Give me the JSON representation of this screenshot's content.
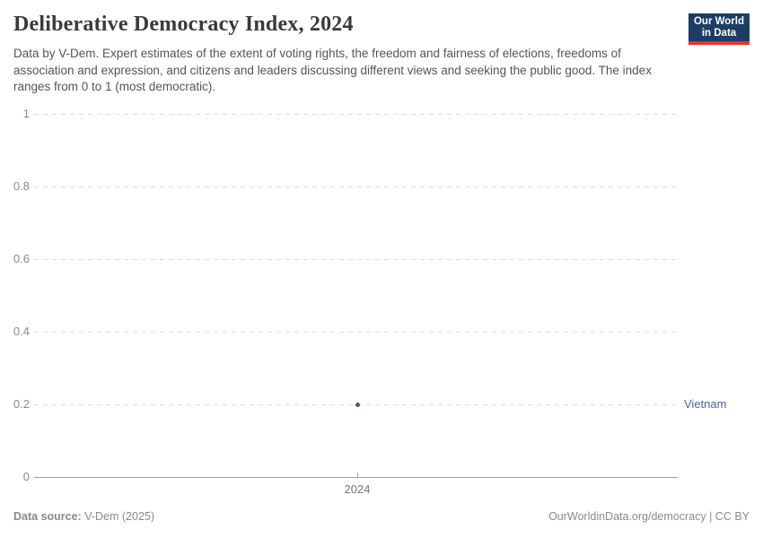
{
  "header": {
    "title": "Deliberative Democracy Index, 2024",
    "subtitle": "Data by V-Dem. Expert estimates of the extent of voting rights, the freedom and fairness of elections, freedoms of association and expression, and citizens and leaders discussing different views and seeking the public good. The index ranges from 0 to 1 (most democratic).",
    "logo": {
      "line1": "Our World",
      "line2": "in Data",
      "bg_color": "#1d3d63",
      "accent_color": "#e2362b"
    }
  },
  "chart_data": {
    "type": "scatter",
    "title": "Deliberative Democracy Index, 2024",
    "x": [
      2024
    ],
    "series": [
      {
        "name": "Vietnam",
        "values": [
          0.2
        ],
        "color": "#3b5d92",
        "label_color": "#4268a5"
      }
    ],
    "xlabel": "",
    "ylabel": "",
    "ylim": [
      0,
      1
    ],
    "yticks": [
      "0",
      "0.2",
      "0.4",
      "0.6",
      "0.8",
      "1"
    ],
    "xticks": [
      "2024"
    ],
    "grid": "horizontal-dashed",
    "gridline_color": "#dcdcdc",
    "axis_color": "#9f9f9f",
    "legend_position": "right"
  },
  "footer": {
    "source_label": "Data source:",
    "source_value": " V-Dem (2025)",
    "credit": "OurWorldinData.org/democracy | CC BY"
  }
}
